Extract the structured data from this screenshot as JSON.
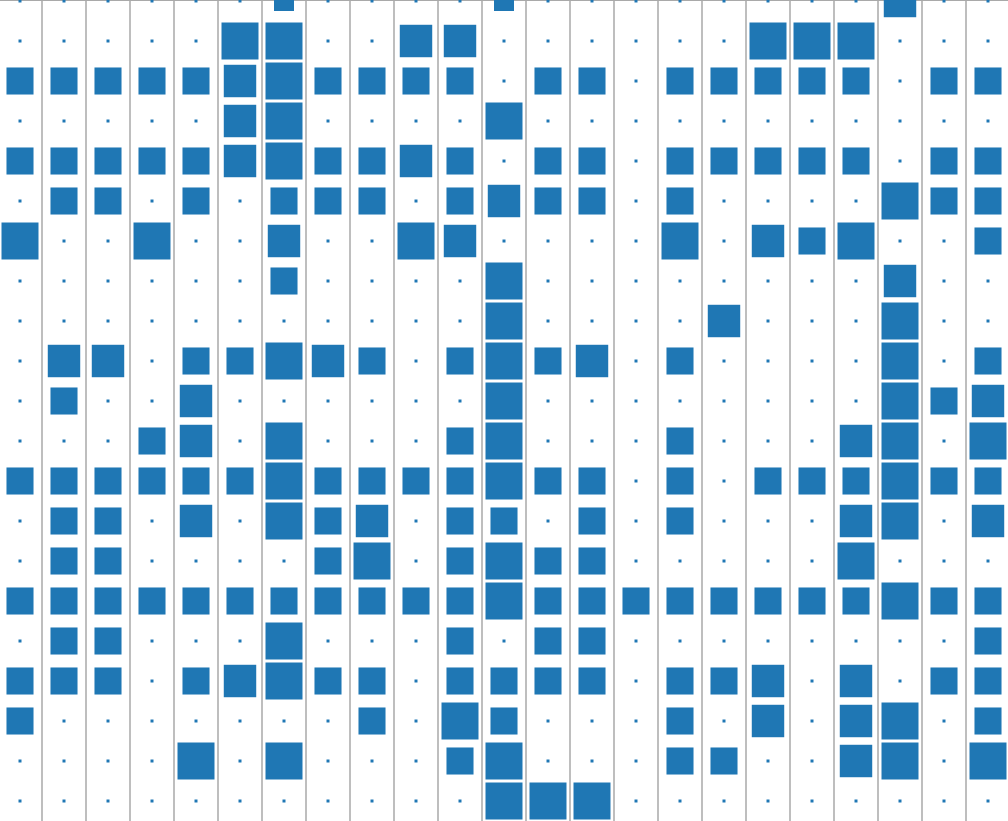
{
  "chart_data": {
    "type": "heatmap",
    "title": "",
    "xlabel": "",
    "ylabel": "",
    "grid": true,
    "legend": "none",
    "columns": 23,
    "rows": 21,
    "color": "#1f77b4",
    "grid_color": "#a9a9a9",
    "x_range": [
      -0.5,
      22.5
    ],
    "y_range": [
      -0.5,
      20.5
    ],
    "value_range": [
      0,
      4
    ],
    "values": [
      [
        0,
        0,
        0,
        0,
        0,
        0,
        1,
        0,
        0,
        0,
        0,
        1,
        0,
        0,
        0,
        0,
        0,
        0,
        0,
        0,
        3,
        0,
        0
      ],
      [
        0,
        0,
        0,
        0,
        0,
        4,
        4,
        0,
        0,
        3,
        3,
        0,
        0,
        0,
        0,
        0,
        0,
        4,
        4,
        4,
        0,
        0,
        0
      ],
      [
        2,
        2,
        2,
        2,
        2,
        3,
        4,
        2,
        2,
        2,
        2,
        0,
        2,
        2,
        0,
        2,
        2,
        2,
        2,
        2,
        0,
        2,
        2
      ],
      [
        0,
        0,
        0,
        0,
        0,
        3,
        4,
        0,
        0,
        0,
        0,
        4,
        0,
        0,
        0,
        0,
        0,
        0,
        0,
        0,
        0,
        0,
        0
      ],
      [
        2,
        2,
        2,
        2,
        2,
        3,
        4,
        2,
        2,
        3,
        2,
        0,
        2,
        2,
        0,
        2,
        2,
        2,
        2,
        2,
        0,
        2,
        2
      ],
      [
        0,
        2,
        2,
        0,
        2,
        0,
        2,
        2,
        2,
        0,
        2,
        3,
        2,
        2,
        0,
        2,
        0,
        0,
        0,
        0,
        4,
        2,
        2
      ],
      [
        4,
        0,
        0,
        4,
        0,
        0,
        3,
        0,
        0,
        4,
        3,
        0,
        0,
        0,
        0,
        4,
        0,
        3,
        2,
        4,
        0,
        0,
        2
      ],
      [
        0,
        0,
        0,
        0,
        0,
        0,
        2,
        0,
        0,
        0,
        0,
        4,
        0,
        0,
        0,
        0,
        0,
        0,
        0,
        0,
        3,
        0,
        0
      ],
      [
        0,
        0,
        0,
        0,
        0,
        0,
        0,
        0,
        0,
        0,
        0,
        4,
        0,
        0,
        0,
        0,
        3,
        0,
        0,
        0,
        4,
        0,
        0
      ],
      [
        0,
        3,
        3,
        0,
        2,
        2,
        4,
        3,
        2,
        0,
        2,
        4,
        2,
        3,
        0,
        2,
        0,
        0,
        0,
        0,
        4,
        0,
        2
      ],
      [
        0,
        2,
        0,
        0,
        3,
        0,
        0,
        0,
        0,
        0,
        0,
        4,
        0,
        0,
        0,
        0,
        0,
        0,
        0,
        0,
        4,
        2,
        3
      ],
      [
        0,
        0,
        0,
        2,
        3,
        0,
        4,
        0,
        0,
        0,
        2,
        4,
        0,
        0,
        0,
        2,
        0,
        0,
        0,
        3,
        4,
        0,
        4
      ],
      [
        2,
        2,
        2,
        2,
        2,
        2,
        4,
        2,
        2,
        2,
        2,
        4,
        2,
        2,
        0,
        2,
        0,
        2,
        2,
        2,
        4,
        2,
        2
      ],
      [
        0,
        2,
        2,
        0,
        3,
        0,
        4,
        2,
        3,
        0,
        2,
        2,
        0,
        2,
        0,
        2,
        0,
        0,
        0,
        3,
        4,
        0,
        3
      ],
      [
        0,
        2,
        2,
        0,
        0,
        0,
        0,
        2,
        4,
        0,
        2,
        4,
        2,
        2,
        0,
        0,
        0,
        0,
        0,
        4,
        0,
        0,
        0
      ],
      [
        2,
        2,
        2,
        2,
        2,
        2,
        2,
        2,
        2,
        2,
        2,
        4,
        2,
        2,
        2,
        2,
        2,
        2,
        2,
        2,
        4,
        2,
        2
      ],
      [
        0,
        2,
        2,
        0,
        0,
        0,
        4,
        0,
        0,
        0,
        2,
        0,
        2,
        2,
        0,
        0,
        0,
        0,
        0,
        0,
        0,
        0,
        2
      ],
      [
        2,
        2,
        2,
        0,
        2,
        3,
        4,
        2,
        2,
        0,
        2,
        2,
        2,
        2,
        0,
        2,
        2,
        3,
        0,
        3,
        0,
        2,
        2
      ],
      [
        2,
        0,
        0,
        0,
        0,
        0,
        0,
        0,
        2,
        0,
        4,
        2,
        0,
        0,
        0,
        2,
        0,
        3,
        0,
        3,
        4,
        0,
        2
      ],
      [
        0,
        0,
        0,
        0,
        4,
        0,
        4,
        0,
        0,
        0,
        2,
        4,
        0,
        0,
        0,
        2,
        2,
        0,
        0,
        3,
        4,
        0,
        4
      ],
      [
        0,
        0,
        0,
        0,
        0,
        0,
        0,
        0,
        0,
        0,
        0,
        4,
        4,
        4,
        0,
        0,
        0,
        0,
        0,
        0,
        0,
        0,
        0
      ]
    ]
  }
}
